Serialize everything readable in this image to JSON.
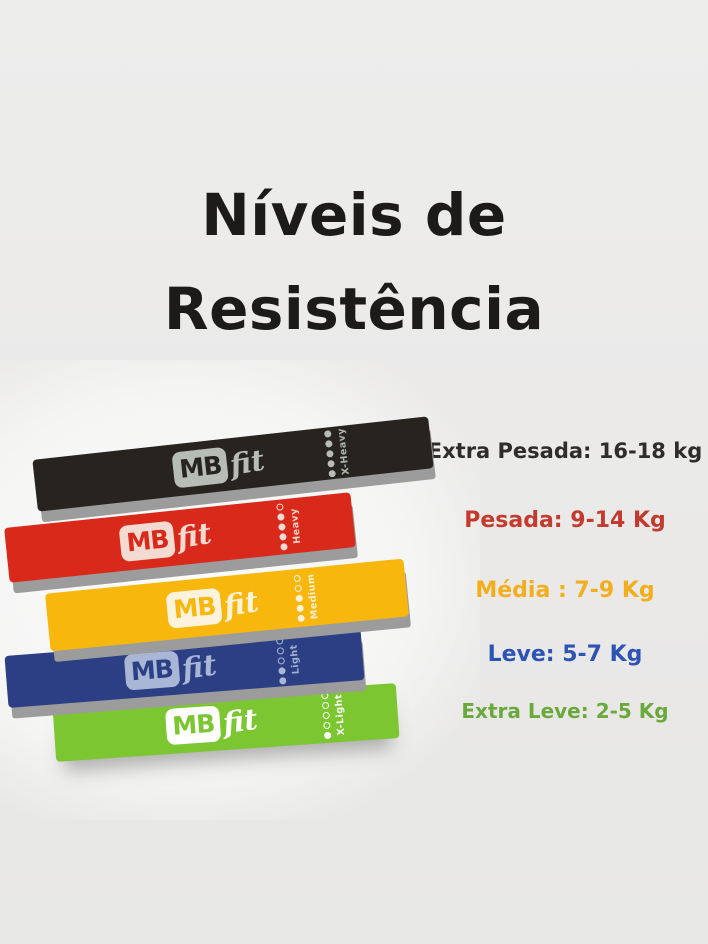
{
  "page": {
    "background_color": "#ebebeb",
    "title_color": "#1c1b19",
    "shadow_color": "#9c9c9c",
    "title_line1": "Níveis de",
    "title_line2": "Resistência"
  },
  "brand": {
    "logo_mb": "MB",
    "logo_fit": "fit"
  },
  "bands": [
    {
      "name": "x-heavy",
      "color": "#272420",
      "logo_color": "#b7bcb4",
      "label": "X-Heavy",
      "dots_filled": 5,
      "dots_total": 5
    },
    {
      "name": "heavy",
      "color": "#d9291b",
      "logo_color": "#f4dbd2",
      "label": "Heavy",
      "dots_filled": 4,
      "dots_total": 5
    },
    {
      "name": "medium",
      "color": "#f8b70d",
      "logo_color": "#fdf2dc",
      "label": "Medium",
      "dots_filled": 3,
      "dots_total": 5
    },
    {
      "name": "light",
      "color": "#2c3e84",
      "logo_color": "#a9b7d6",
      "label": "Light",
      "dots_filled": 2,
      "dots_total": 5
    },
    {
      "name": "x-light",
      "color": "#7bc631",
      "logo_color": "#ffffff",
      "label": "X-Light",
      "dots_filled": 1,
      "dots_total": 5
    }
  ],
  "levels": [
    {
      "text": "Extra Pesada: 16-18 kg",
      "color": "#2e2d2b"
    },
    {
      "text": "Pesada: 9-14 Kg",
      "color": "#c23b2e"
    },
    {
      "text": "Média : 7-9 Kg",
      "color": "#f2ae1c"
    },
    {
      "text": "Leve: 5-7 Kg",
      "color": "#2d54b4"
    },
    {
      "text": "Extra Leve: 2-5 Kg",
      "color": "#6aa93c"
    }
  ]
}
